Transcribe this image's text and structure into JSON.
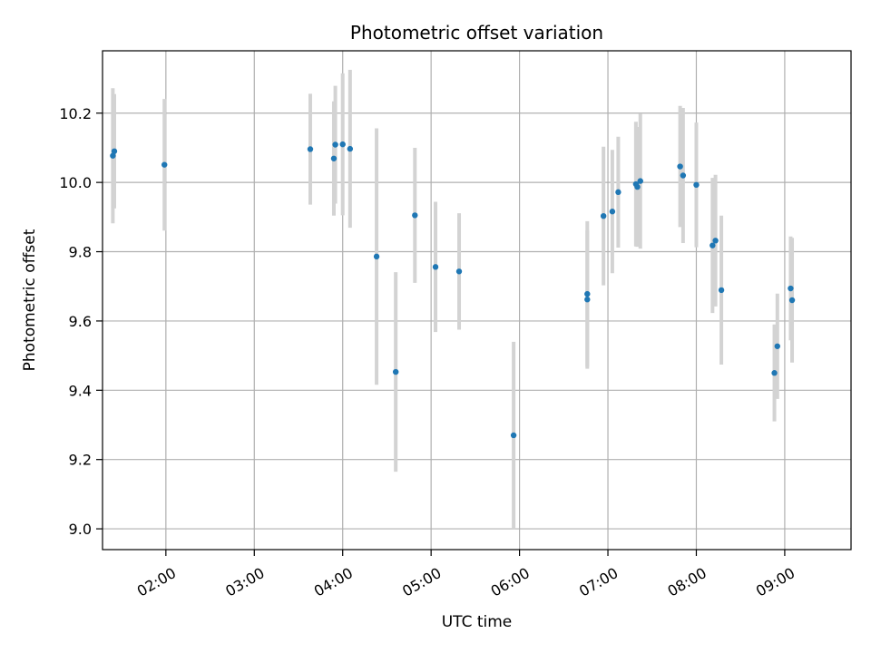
{
  "chart_data": {
    "type": "scatter",
    "title": "Photometric offset variation",
    "xlabel": "UTC time",
    "ylabel": "Photometric offset",
    "x_ticks": [
      "02:00",
      "03:00",
      "04:00",
      "05:00",
      "06:00",
      "07:00",
      "08:00",
      "09:00"
    ],
    "y_ticks": [
      "9.0",
      "9.2",
      "9.4",
      "9.6",
      "9.8",
      "10.0",
      "10.2"
    ],
    "xlim": [
      "01:17",
      "09:45"
    ],
    "ylim": [
      8.94,
      10.38
    ],
    "grid": true,
    "point_color": "#1f77b4",
    "errorbar_color": "#d3d3d3",
    "points": [
      {
        "x": "01:24",
        "y": 10.077,
        "yerr": 0.195
      },
      {
        "x": "01:25",
        "y": 10.09,
        "yerr": 0.165
      },
      {
        "x": "01:59",
        "y": 10.051,
        "yerr": 0.19
      },
      {
        "x": "03:38",
        "y": 10.096,
        "yerr": 0.16
      },
      {
        "x": "03:54",
        "y": 10.069,
        "yerr": 0.165
      },
      {
        "x": "03:55",
        "y": 10.109,
        "yerr": 0.17
      },
      {
        "x": "04:00",
        "y": 10.11,
        "yerr": 0.205
      },
      {
        "x": "04:05",
        "y": 10.097,
        "yerr": 0.228
      },
      {
        "x": "04:23",
        "y": 9.786,
        "yerr": 0.37
      },
      {
        "x": "04:36",
        "y": 9.453,
        "yerr": 0.288
      },
      {
        "x": "04:49",
        "y": 9.905,
        "yerr": 0.195
      },
      {
        "x": "05:03",
        "y": 9.756,
        "yerr": 0.188
      },
      {
        "x": "05:19",
        "y": 9.743,
        "yerr": 0.168
      },
      {
        "x": "05:56",
        "y": 9.27,
        "yerr": 0.27
      },
      {
        "x": "06:46",
        "y": 9.662,
        "yerr": 0.2
      },
      {
        "x": "06:46",
        "y": 9.678,
        "yerr": 0.21
      },
      {
        "x": "06:57",
        "y": 9.903,
        "yerr": 0.2
      },
      {
        "x": "07:03",
        "y": 9.916,
        "yerr": 0.178
      },
      {
        "x": "07:07",
        "y": 9.972,
        "yerr": 0.16
      },
      {
        "x": "07:19",
        "y": 9.995,
        "yerr": 0.18
      },
      {
        "x": "07:20",
        "y": 9.987,
        "yerr": 0.173
      },
      {
        "x": "07:22",
        "y": 10.004,
        "yerr": 0.195
      },
      {
        "x": "07:49",
        "y": 10.046,
        "yerr": 0.175
      },
      {
        "x": "07:51",
        "y": 10.02,
        "yerr": 0.195
      },
      {
        "x": "08:00",
        "y": 9.993,
        "yerr": 0.18
      },
      {
        "x": "08:11",
        "y": 9.818,
        "yerr": 0.195
      },
      {
        "x": "08:13",
        "y": 9.832,
        "yerr": 0.19
      },
      {
        "x": "08:17",
        "y": 9.689,
        "yerr": 0.215
      },
      {
        "x": "08:53",
        "y": 9.45,
        "yerr": 0.14
      },
      {
        "x": "08:55",
        "y": 9.527,
        "yerr": 0.152
      },
      {
        "x": "09:04",
        "y": 9.694,
        "yerr": 0.15
      },
      {
        "x": "09:05",
        "y": 9.66,
        "yerr": 0.18
      }
    ]
  }
}
